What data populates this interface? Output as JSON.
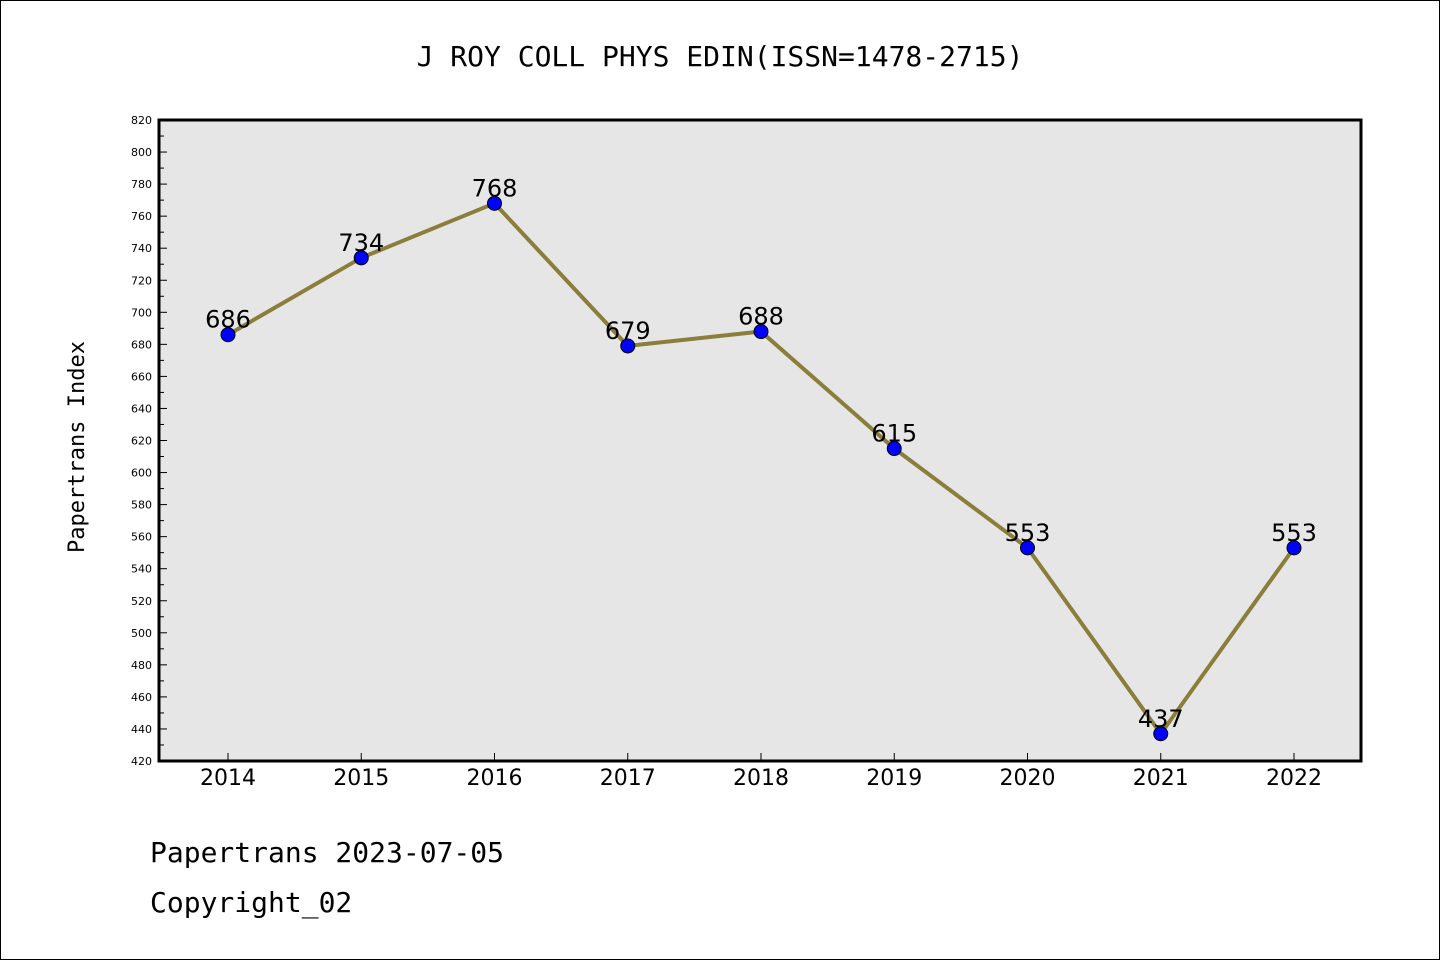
{
  "chart_data": {
    "type": "line",
    "title": "J ROY COLL PHYS EDIN(ISSN=1478-2715)",
    "xlabel": "",
    "ylabel": "Papertrans Index",
    "categories": [
      "2014",
      "2015",
      "2016",
      "2017",
      "2018",
      "2019",
      "2020",
      "2021",
      "2022"
    ],
    "series": [
      {
        "values": [
          686,
          734,
          768,
          679,
          688,
          615,
          553,
          437,
          553
        ]
      }
    ],
    "ylim": [
      420,
      820
    ],
    "yticks": [
      420,
      440,
      460,
      480,
      500,
      520,
      540,
      560,
      580,
      600,
      620,
      640,
      660,
      680,
      700,
      720,
      740,
      760,
      780,
      800,
      820
    ],
    "grid": false,
    "colors": {
      "plot_background": "#e6e6e6",
      "line": "#8b7d3a",
      "marker": "#0000ff"
    }
  },
  "footer": {
    "date_line": "Papertrans 2023-07-05",
    "copyright": "Copyright_02"
  }
}
